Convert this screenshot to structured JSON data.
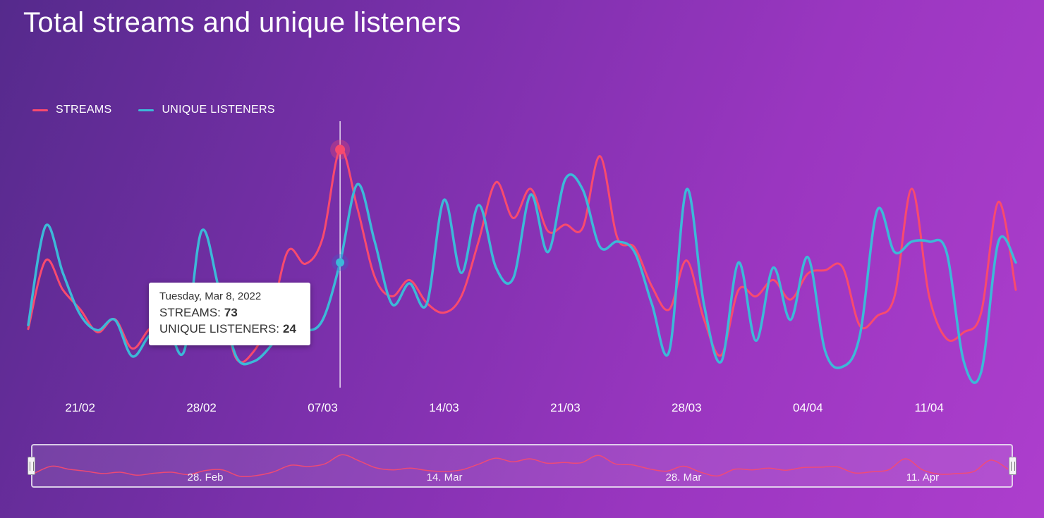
{
  "title": "Total streams and unique listeners",
  "legend": {
    "streams_label": "STREAMS",
    "listeners_label": "UNIQUE LISTENERS"
  },
  "tooltip": {
    "date": "Tuesday, Mar 8, 2022",
    "streams_label": "STREAMS:",
    "streams_value": "73",
    "listeners_label": "UNIQUE LISTENERS:",
    "listeners_value": "24",
    "point_index": 18
  },
  "colors": {
    "streams": "#f84a6e",
    "listeners": "#3cb9d8",
    "listeners_halo": "rgba(70,90,200,0.38)",
    "background_start": "#552a8c",
    "background_end": "#ad3ecd",
    "axis_label": "#ffffff",
    "crosshair": "#ffffff",
    "tooltip_bg": "#ffffff",
    "tooltip_text": "#333333",
    "navigator_outline": "#ece6f3"
  },
  "x_axis": {
    "ticks": [
      {
        "label": "21/02",
        "index": 3
      },
      {
        "label": "28/02",
        "index": 10
      },
      {
        "label": "07/03",
        "index": 17
      },
      {
        "label": "14/03",
        "index": 24
      },
      {
        "label": "21/03",
        "index": 31
      },
      {
        "label": "28/03",
        "index": 38
      },
      {
        "label": "04/04",
        "index": 45
      },
      {
        "label": "11/04",
        "index": 52
      }
    ]
  },
  "navigator": {
    "ticks": [
      {
        "label": "28. Feb",
        "index": 10
      },
      {
        "label": "14. Mar",
        "index": 24
      },
      {
        "label": "28. Mar",
        "index": 38
      },
      {
        "label": "11. Apr",
        "index": 52
      }
    ]
  },
  "chart_data": {
    "type": "line",
    "title": "Total streams and unique listeners",
    "xlabel": "",
    "ylabel": "",
    "grid": false,
    "legend_position": "top-left",
    "highlighted_point": {
      "date": "2022-03-08",
      "streams": 73,
      "unique_listeners": 24
    },
    "x": [
      "2022-02-18",
      "2022-02-19",
      "2022-02-20",
      "2022-02-21",
      "2022-02-22",
      "2022-02-23",
      "2022-02-24",
      "2022-02-25",
      "2022-02-26",
      "2022-02-27",
      "2022-02-28",
      "2022-03-01",
      "2022-03-02",
      "2022-03-03",
      "2022-03-04",
      "2022-03-05",
      "2022-03-06",
      "2022-03-07",
      "2022-03-08",
      "2022-03-09",
      "2022-03-10",
      "2022-03-11",
      "2022-03-12",
      "2022-03-13",
      "2022-03-14",
      "2022-03-15",
      "2022-03-16",
      "2022-03-17",
      "2022-03-18",
      "2022-03-19",
      "2022-03-20",
      "2022-03-21",
      "2022-03-22",
      "2022-03-23",
      "2022-03-24",
      "2022-03-25",
      "2022-03-26",
      "2022-03-27",
      "2022-03-28",
      "2022-03-29",
      "2022-03-30",
      "2022-03-31",
      "2022-04-01",
      "2022-04-02",
      "2022-04-03",
      "2022-04-04",
      "2022-04-05",
      "2022-04-06",
      "2022-04-07",
      "2022-04-08",
      "2022-04-09",
      "2022-04-10",
      "2022-04-11",
      "2022-04-12",
      "2022-04-13",
      "2022-04-14",
      "2022-04-15",
      "2022-04-16"
    ],
    "series": [
      {
        "name": "Streams",
        "color": "#f84a6e",
        "ylim": [
          0,
          80
        ],
        "values": [
          18,
          39,
          30,
          24,
          17,
          21,
          12,
          18,
          21,
          14,
          26,
          28,
          9,
          11,
          22,
          42,
          38,
          46,
          73,
          55,
          34,
          28,
          33,
          26,
          23,
          28,
          45,
          63,
          52,
          61,
          48,
          50,
          49,
          71,
          46,
          43,
          31,
          24,
          39,
          21,
          10,
          30,
          28,
          33,
          27,
          35,
          36,
          37,
          19,
          22,
          28,
          61,
          28,
          15,
          17,
          23,
          57,
          30
        ]
      },
      {
        "name": "Unique listeners",
        "color": "#3cb9d8",
        "ylim": [
          0,
          50
        ],
        "values": [
          12,
          31,
          22,
          14,
          11,
          13,
          6,
          10,
          12,
          7,
          30,
          19,
          6,
          5,
          8,
          13,
          11,
          13,
          24,
          39,
          28,
          16,
          20,
          16,
          36,
          22,
          35,
          23,
          21,
          37,
          26,
          40,
          38,
          27,
          28,
          26,
          16,
          7,
          38,
          16,
          5,
          24,
          9,
          23,
          13,
          25,
          7,
          4,
          10,
          34,
          26,
          28,
          28,
          26,
          5,
          3,
          28,
          24
        ]
      }
    ]
  }
}
